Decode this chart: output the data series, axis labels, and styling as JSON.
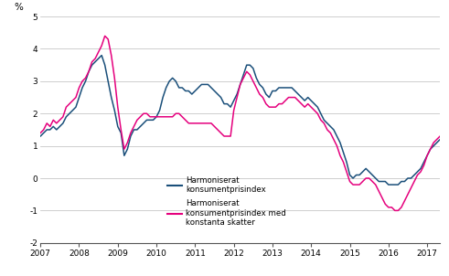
{
  "title": "",
  "ylabel": "%",
  "ylim": [
    -2,
    5
  ],
  "yticks": [
    -2,
    -1,
    0,
    1,
    2,
    3,
    4,
    5
  ],
  "xlim": [
    2007.0,
    2017.333
  ],
  "xticks": [
    2007,
    2008,
    2009,
    2010,
    2011,
    2012,
    2013,
    2014,
    2015,
    2016,
    2017
  ],
  "line1_color": "#1a4f7a",
  "line2_color": "#e5007d",
  "line1_label": "Harmoniserat\nkonsumentprisindex",
  "line2_label": "Harmoniserat\nkonsumentprisindex med\nkonstanta skatter",
  "background_color": "#ffffff",
  "grid_color": "#bbbbbb",
  "line_width": 1.1,
  "hicp": [
    1.3,
    1.4,
    1.5,
    1.5,
    1.6,
    1.5,
    1.6,
    1.7,
    1.9,
    2.0,
    2.1,
    2.2,
    2.5,
    2.8,
    3.0,
    3.3,
    3.5,
    3.6,
    3.7,
    3.8,
    3.5,
    3.0,
    2.5,
    2.1,
    1.6,
    1.4,
    0.7,
    0.9,
    1.3,
    1.5,
    1.5,
    1.6,
    1.7,
    1.8,
    1.8,
    1.8,
    1.9,
    2.1,
    2.5,
    2.8,
    3.0,
    3.1,
    3.0,
    2.8,
    2.8,
    2.7,
    2.7,
    2.6,
    2.7,
    2.8,
    2.9,
    2.9,
    2.9,
    2.8,
    2.7,
    2.6,
    2.5,
    2.3,
    2.3,
    2.2,
    2.4,
    2.6,
    2.9,
    3.2,
    3.5,
    3.5,
    3.4,
    3.1,
    2.9,
    2.8,
    2.6,
    2.5,
    2.7,
    2.7,
    2.8,
    2.8,
    2.8,
    2.8,
    2.8,
    2.7,
    2.6,
    2.5,
    2.4,
    2.5,
    2.4,
    2.3,
    2.2,
    2.0,
    1.8,
    1.7,
    1.6,
    1.5,
    1.3,
    1.1,
    0.8,
    0.5,
    0.1,
    0.0,
    0.1,
    0.1,
    0.2,
    0.3,
    0.2,
    0.1,
    0.0,
    -0.1,
    -0.1,
    -0.1,
    -0.2,
    -0.2,
    -0.2,
    -0.2,
    -0.1,
    -0.1,
    0.0,
    0.0,
    0.1,
    0.2,
    0.3,
    0.5,
    0.7,
    0.9,
    1.0,
    1.1,
    1.2,
    1.3,
    1.3
  ],
  "hicp_ct": [
    1.4,
    1.5,
    1.7,
    1.6,
    1.8,
    1.7,
    1.8,
    1.9,
    2.2,
    2.3,
    2.4,
    2.5,
    2.8,
    3.0,
    3.1,
    3.3,
    3.6,
    3.7,
    3.9,
    4.1,
    4.4,
    4.3,
    3.8,
    3.1,
    2.2,
    1.5,
    0.9,
    1.1,
    1.4,
    1.6,
    1.8,
    1.9,
    2.0,
    2.0,
    1.9,
    1.9,
    1.9,
    1.9,
    1.9,
    1.9,
    1.9,
    1.9,
    2.0,
    2.0,
    1.9,
    1.8,
    1.7,
    1.7,
    1.7,
    1.7,
    1.7,
    1.7,
    1.7,
    1.7,
    1.6,
    1.5,
    1.4,
    1.3,
    1.3,
    1.3,
    2.1,
    2.5,
    2.9,
    3.1,
    3.3,
    3.2,
    3.0,
    2.8,
    2.6,
    2.5,
    2.3,
    2.2,
    2.2,
    2.2,
    2.3,
    2.3,
    2.4,
    2.5,
    2.5,
    2.5,
    2.4,
    2.3,
    2.2,
    2.3,
    2.2,
    2.1,
    2.0,
    1.8,
    1.7,
    1.5,
    1.4,
    1.2,
    1.0,
    0.7,
    0.5,
    0.2,
    -0.1,
    -0.2,
    -0.2,
    -0.2,
    -0.1,
    0.0,
    0.0,
    -0.1,
    -0.2,
    -0.4,
    -0.6,
    -0.8,
    -0.9,
    -0.9,
    -1.0,
    -1.0,
    -0.9,
    -0.7,
    -0.5,
    -0.3,
    -0.1,
    0.1,
    0.2,
    0.4,
    0.7,
    0.9,
    1.1,
    1.2,
    1.3,
    1.4,
    1.4
  ]
}
